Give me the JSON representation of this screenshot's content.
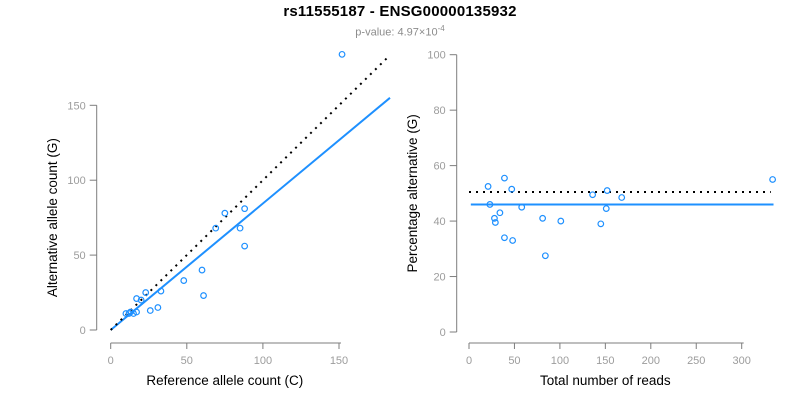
{
  "header": {
    "title": "rs11555187 - ENSG00000135932",
    "p_value_label": "p-value: 4.97×10",
    "p_value_exponent": "-4"
  },
  "colors": {
    "background": "#FFFFFF",
    "points": "#1E90FF",
    "fit_line": "#1E90FF",
    "reference_line": "#000000",
    "axis": "#7d7d7d",
    "tick_label": "#9c9c9c",
    "axis_title": "#000000",
    "title": "#000000",
    "subtitle": "#8c8c8c"
  },
  "chart_data": [
    {
      "id": "allele-count-scatter",
      "type": "scatter",
      "title": "",
      "xlabel": "Reference allele count (C)",
      "ylabel": "Alternative allele count (G)",
      "x_ticks": [
        0,
        50,
        100,
        150
      ],
      "y_ticks": [
        0,
        50,
        100,
        150
      ],
      "xlim": [
        0,
        184
      ],
      "ylim": [
        0,
        186
      ],
      "grid": false,
      "legend": "none",
      "points": [
        [
          10,
          11
        ],
        [
          12,
          11
        ],
        [
          13,
          12
        ],
        [
          15,
          11
        ],
        [
          17,
          12
        ],
        [
          17,
          21
        ],
        [
          20,
          20
        ],
        [
          23,
          25
        ],
        [
          26,
          13
        ],
        [
          31,
          15
        ],
        [
          33,
          26
        ],
        [
          48,
          33
        ],
        [
          60,
          40
        ],
        [
          61,
          23
        ],
        [
          69,
          68
        ],
        [
          75,
          78
        ],
        [
          85,
          68
        ],
        [
          88,
          56
        ],
        [
          88,
          81
        ],
        [
          152,
          184
        ]
      ],
      "lines": [
        {
          "name": "fitted-ratio-line",
          "style": "solid",
          "color": "#1E90FF",
          "from": [
            0,
            0
          ],
          "to": [
            183.5,
            155
          ]
        },
        {
          "name": "identity-line",
          "style": "dotted",
          "color": "#000000",
          "from": [
            0,
            0
          ],
          "to": [
            182.5,
            182.5
          ]
        }
      ]
    },
    {
      "id": "percentage-scatter",
      "type": "scatter",
      "title": "",
      "xlabel": "Total number of reads",
      "ylabel": "Percentage alternative (G)",
      "x_ticks": [
        0,
        50,
        100,
        150,
        200,
        250,
        300
      ],
      "y_ticks": [
        0,
        20,
        40,
        60,
        80,
        100
      ],
      "xlim": [
        0,
        335
      ],
      "ylim": [
        0,
        100
      ],
      "grid": false,
      "legend": "none",
      "points": [
        [
          21,
          52.5
        ],
        [
          23,
          46
        ],
        [
          28,
          41
        ],
        [
          29,
          39.5
        ],
        [
          34,
          43
        ],
        [
          39,
          34
        ],
        [
          39,
          55.5
        ],
        [
          47,
          51.5
        ],
        [
          48,
          33
        ],
        [
          58,
          45
        ],
        [
          81,
          41
        ],
        [
          84,
          27.5
        ],
        [
          101,
          40
        ],
        [
          136,
          49.5
        ],
        [
          145,
          39
        ],
        [
          151,
          44.5
        ],
        [
          152,
          51
        ],
        [
          168,
          48.5
        ],
        [
          334,
          55
        ]
      ],
      "lines": [
        {
          "name": "fitted-percentage-line",
          "style": "solid",
          "color": "#1E90FF",
          "from": [
            2,
            46
          ],
          "to": [
            335,
            46
          ]
        },
        {
          "name": "expected-percentage-line",
          "style": "dotted",
          "color": "#000000",
          "from": [
            0,
            50.5
          ],
          "to": [
            332,
            50.5
          ]
        }
      ]
    }
  ]
}
